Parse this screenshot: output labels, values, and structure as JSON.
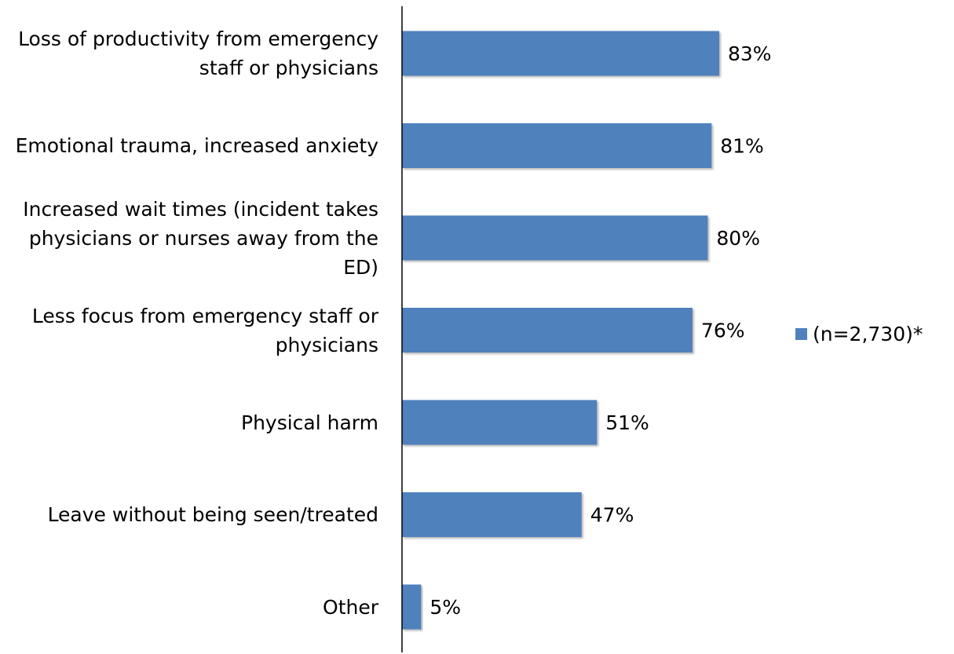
{
  "chart_data": {
    "type": "bar",
    "orientation": "horizontal",
    "categories": [
      "Loss of productivity from emergency staff or physicians",
      "Emotional trauma, increased anxiety",
      "Increased wait times  (incident takes physicians or nurses away from the ED)",
      "Less focus from emergency staff or physicians",
      "Physical harm",
      "Leave without being seen/treated",
      "Other"
    ],
    "series": [
      {
        "name": "(n=2,730)*",
        "values": [
          83,
          81,
          80,
          76,
          51,
          47,
          5
        ],
        "data_labels": [
          "83%",
          "81%",
          "80%",
          "76%",
          "51%",
          "47%",
          "5%"
        ]
      }
    ],
    "xlim": [
      0,
      100
    ],
    "grid": false,
    "legend_position": "right"
  },
  "colors": {
    "bar": "#4F81BD",
    "axis": "#000000",
    "text": "#000000"
  }
}
